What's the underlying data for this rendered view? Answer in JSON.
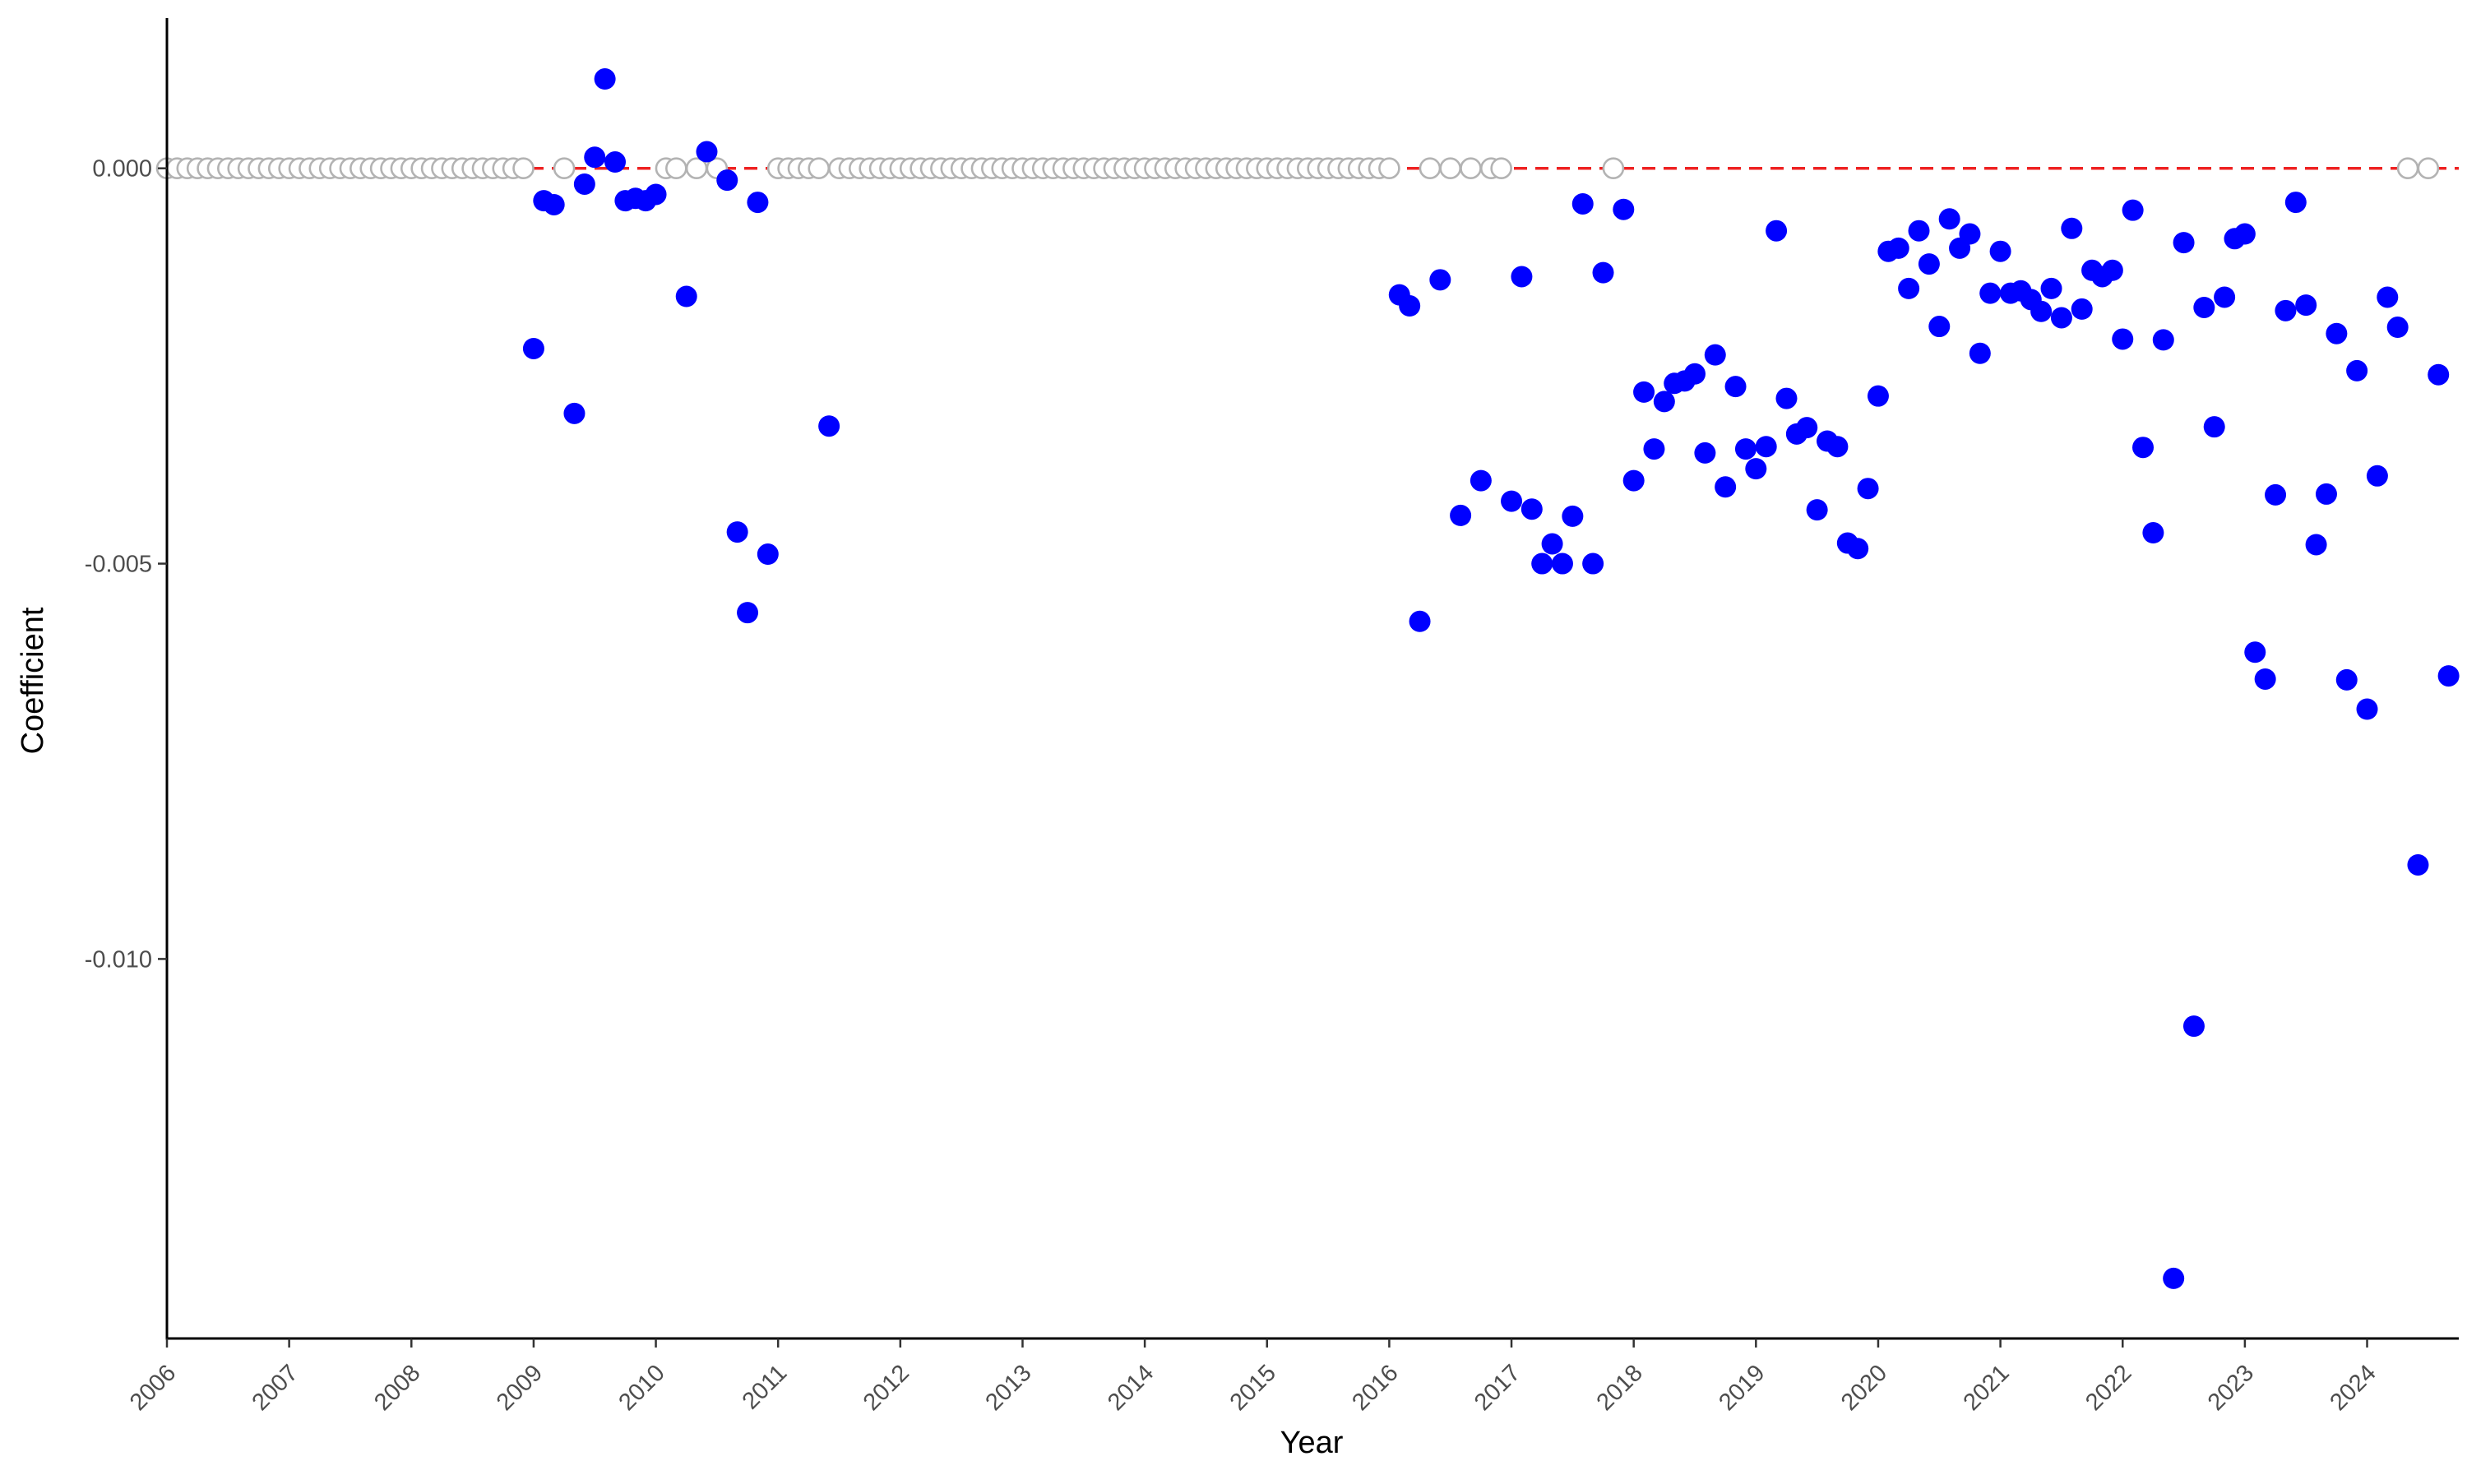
{
  "chart_data": {
    "type": "scatter",
    "xlabel": "Year",
    "ylabel": "Coefficient",
    "x_ticks": [
      "2006",
      "2007",
      "2008",
      "2009",
      "2010",
      "2011",
      "2012",
      "2013",
      "2014",
      "2015",
      "2016",
      "2017",
      "2018",
      "2019",
      "2020",
      "2021",
      "2022",
      "2023",
      "2024"
    ],
    "y_ticks": [
      "0.000",
      "-0.005",
      "-0.010"
    ],
    "xlim": [
      "2006-01",
      "2024-10"
    ],
    "ylim": [
      -0.0148,
      0.0019
    ],
    "grid": false,
    "reference_line": {
      "y": 0,
      "style": "dashed",
      "color": "#ee2222"
    },
    "colors": {
      "significant": "#0000ff",
      "not_significant": "#b3b3b3",
      "reference": "#ee2222"
    },
    "series": [
      {
        "marker": "filled",
        "color": "#0000ff",
        "points": [
          [
            "2009-01",
            -0.00228
          ],
          [
            "2009-02",
            -0.00041
          ],
          [
            "2009-03",
            -0.00046
          ],
          [
            "2009-05",
            -0.0031
          ],
          [
            "2009-06",
            -0.0002
          ],
          [
            "2009-07",
            0.00014
          ],
          [
            "2009-08",
            0.00113
          ],
          [
            "2009-09",
            8e-05
          ],
          [
            "2009-10",
            -0.00041
          ],
          [
            "2009-11",
            -0.00038
          ],
          [
            "2009-12",
            -0.00041
          ],
          [
            "2010-01",
            -0.00033
          ],
          [
            "2010-04",
            -0.00162
          ],
          [
            "2010-06",
            0.00021
          ],
          [
            "2010-08",
            -0.00015
          ],
          [
            "2010-09",
            -0.0046
          ],
          [
            "2010-10",
            -0.00562
          ],
          [
            "2010-11",
            -0.00043
          ],
          [
            "2010-12",
            -0.00488
          ],
          [
            "2011-06",
            -0.00326
          ],
          [
            "2016-02",
            -0.0016
          ],
          [
            "2016-03",
            -0.00174
          ],
          [
            "2016-04",
            -0.00573
          ],
          [
            "2016-06",
            -0.00141
          ],
          [
            "2016-08",
            -0.00439
          ],
          [
            "2016-10",
            -0.00395
          ],
          [
            "2017-01",
            -0.00421
          ],
          [
            "2017-02",
            -0.00137
          ],
          [
            "2017-03",
            -0.00431
          ],
          [
            "2017-04",
            -0.005
          ],
          [
            "2017-05",
            -0.00475
          ],
          [
            "2017-06",
            -0.005
          ],
          [
            "2017-07",
            -0.0044
          ],
          [
            "2017-08",
            -0.00045
          ],
          [
            "2017-09",
            -0.005
          ],
          [
            "2017-10",
            -0.00132
          ],
          [
            "2017-12",
            -0.00052
          ],
          [
            "2018-01",
            -0.00395
          ],
          [
            "2018-02",
            -0.00283
          ],
          [
            "2018-03",
            -0.00355
          ],
          [
            "2018-04",
            -0.00295
          ],
          [
            "2018-05",
            -0.00272
          ],
          [
            "2018-06",
            -0.00269
          ],
          [
            "2018-07",
            -0.0026
          ],
          [
            "2018-08",
            -0.0036
          ],
          [
            "2018-09",
            -0.00236
          ],
          [
            "2018-10",
            -0.00403
          ],
          [
            "2018-11",
            -0.00276
          ],
          [
            "2018-12",
            -0.00355
          ],
          [
            "2019-01",
            -0.0038
          ],
          [
            "2019-02",
            -0.00352
          ],
          [
            "2019-03",
            -0.00079
          ],
          [
            "2019-04",
            -0.00291
          ],
          [
            "2019-05",
            -0.00336
          ],
          [
            "2019-06",
            -0.00328
          ],
          [
            "2019-07",
            -0.00432
          ],
          [
            "2019-08",
            -0.00345
          ],
          [
            "2019-09",
            -0.00352
          ],
          [
            "2019-10",
            -0.00474
          ],
          [
            "2019-11",
            -0.00481
          ],
          [
            "2019-12",
            -0.00405
          ],
          [
            "2020-01",
            -0.00288
          ],
          [
            "2020-02",
            -0.00105
          ],
          [
            "2020-03",
            -0.00101
          ],
          [
            "2020-04",
            -0.00152
          ],
          [
            "2020-05",
            -0.00079
          ],
          [
            "2020-06",
            -0.00121
          ],
          [
            "2020-07",
            -0.002
          ],
          [
            "2020-08",
            -0.00064
          ],
          [
            "2020-09",
            -0.00101
          ],
          [
            "2020-10",
            -0.00083
          ],
          [
            "2020-11",
            -0.00234
          ],
          [
            "2020-12",
            -0.00158
          ],
          [
            "2021-01",
            -0.00105
          ],
          [
            "2021-02",
            -0.00158
          ],
          [
            "2021-03",
            -0.00155
          ],
          [
            "2021-04",
            -0.00166
          ],
          [
            "2021-05",
            -0.00181
          ],
          [
            "2021-06",
            -0.00152
          ],
          [
            "2021-07",
            -0.00189
          ],
          [
            "2021-08",
            -0.00076
          ],
          [
            "2021-09",
            -0.00178
          ],
          [
            "2021-10",
            -0.00129
          ],
          [
            "2021-11",
            -0.00137
          ],
          [
            "2021-12",
            -0.00129
          ],
          [
            "2022-01",
            -0.00216
          ],
          [
            "2022-02",
            -0.00053
          ],
          [
            "2022-03",
            -0.00353
          ],
          [
            "2022-04",
            -0.00461
          ],
          [
            "2022-05",
            -0.00217
          ],
          [
            "2022-06",
            -0.01404
          ],
          [
            "2022-07",
            -0.00094
          ],
          [
            "2022-08",
            -0.01085
          ],
          [
            "2022-09",
            -0.00176
          ],
          [
            "2022-10",
            -0.00327
          ],
          [
            "2022-11",
            -0.00163
          ],
          [
            "2022-12",
            -0.00089
          ],
          [
            "2023-01",
            -0.00083
          ],
          [
            "2023-02",
            -0.00612
          ],
          [
            "2023-03",
            -0.00646
          ],
          [
            "2023-04",
            -0.00413
          ],
          [
            "2023-05",
            -0.0018
          ],
          [
            "2023-06",
            -0.00043
          ],
          [
            "2023-07",
            -0.00173
          ],
          [
            "2023-08",
            -0.00476
          ],
          [
            "2023-09",
            -0.00412
          ],
          [
            "2023-10",
            -0.00209
          ],
          [
            "2023-11",
            -0.00647
          ],
          [
            "2023-12",
            -0.00256
          ],
          [
            "2024-01",
            -0.00684
          ],
          [
            "2024-02",
            -0.00389
          ],
          [
            "2024-03",
            -0.00163
          ],
          [
            "2024-04",
            -0.00201
          ],
          [
            "2024-06",
            -0.00881
          ],
          [
            "2024-08",
            -0.00261
          ],
          [
            "2024-09",
            -0.00642
          ]
        ]
      },
      {
        "marker": "hollow",
        "color": "#b3b3b3",
        "points": [
          [
            "2006-01",
            0
          ],
          [
            "2006-02",
            0
          ],
          [
            "2006-03",
            0
          ],
          [
            "2006-04",
            0
          ],
          [
            "2006-05",
            0
          ],
          [
            "2006-06",
            0
          ],
          [
            "2006-07",
            0
          ],
          [
            "2006-08",
            0
          ],
          [
            "2006-09",
            0
          ],
          [
            "2006-10",
            0
          ],
          [
            "2006-11",
            0
          ],
          [
            "2006-12",
            0
          ],
          [
            "2007-01",
            0
          ],
          [
            "2007-02",
            0
          ],
          [
            "2007-03",
            0
          ],
          [
            "2007-04",
            0
          ],
          [
            "2007-05",
            0
          ],
          [
            "2007-06",
            0
          ],
          [
            "2007-07",
            0
          ],
          [
            "2007-08",
            0
          ],
          [
            "2007-09",
            0
          ],
          [
            "2007-10",
            0
          ],
          [
            "2007-11",
            0
          ],
          [
            "2007-12",
            0
          ],
          [
            "2008-01",
            0
          ],
          [
            "2008-02",
            0
          ],
          [
            "2008-03",
            0
          ],
          [
            "2008-04",
            0
          ],
          [
            "2008-05",
            0
          ],
          [
            "2008-06",
            0
          ],
          [
            "2008-07",
            0
          ],
          [
            "2008-08",
            0
          ],
          [
            "2008-09",
            0
          ],
          [
            "2008-10",
            0
          ],
          [
            "2008-11",
            0
          ],
          [
            "2008-12",
            0
          ],
          [
            "2009-04",
            0
          ],
          [
            "2010-02",
            0
          ],
          [
            "2010-03",
            0
          ],
          [
            "2010-05",
            0
          ],
          [
            "2010-07",
            0
          ],
          [
            "2011-01",
            0
          ],
          [
            "2011-02",
            0
          ],
          [
            "2011-03",
            0
          ],
          [
            "2011-04",
            0
          ],
          [
            "2011-05",
            0
          ],
          [
            "2011-07",
            0
          ],
          [
            "2011-08",
            0
          ],
          [
            "2011-09",
            0
          ],
          [
            "2011-10",
            0
          ],
          [
            "2011-11",
            0
          ],
          [
            "2011-12",
            0
          ],
          [
            "2012-01",
            0
          ],
          [
            "2012-02",
            0
          ],
          [
            "2012-03",
            0
          ],
          [
            "2012-04",
            0
          ],
          [
            "2012-05",
            0
          ],
          [
            "2012-06",
            0
          ],
          [
            "2012-07",
            0
          ],
          [
            "2012-08",
            0
          ],
          [
            "2012-09",
            0
          ],
          [
            "2012-10",
            0
          ],
          [
            "2012-11",
            0
          ],
          [
            "2012-12",
            0
          ],
          [
            "2013-01",
            0
          ],
          [
            "2013-02",
            0
          ],
          [
            "2013-03",
            0
          ],
          [
            "2013-04",
            0
          ],
          [
            "2013-05",
            0
          ],
          [
            "2013-06",
            0
          ],
          [
            "2013-07",
            0
          ],
          [
            "2013-08",
            0
          ],
          [
            "2013-09",
            0
          ],
          [
            "2013-10",
            0
          ],
          [
            "2013-11",
            0
          ],
          [
            "2013-12",
            0
          ],
          [
            "2014-01",
            0
          ],
          [
            "2014-02",
            0
          ],
          [
            "2014-03",
            0
          ],
          [
            "2014-04",
            0
          ],
          [
            "2014-05",
            0
          ],
          [
            "2014-06",
            0
          ],
          [
            "2014-07",
            0
          ],
          [
            "2014-08",
            0
          ],
          [
            "2014-09",
            0
          ],
          [
            "2014-10",
            0
          ],
          [
            "2014-11",
            0
          ],
          [
            "2014-12",
            0
          ],
          [
            "2015-01",
            0
          ],
          [
            "2015-02",
            0
          ],
          [
            "2015-03",
            0
          ],
          [
            "2015-04",
            0
          ],
          [
            "2015-05",
            0
          ],
          [
            "2015-06",
            0
          ],
          [
            "2015-07",
            0
          ],
          [
            "2015-08",
            0
          ],
          [
            "2015-09",
            0
          ],
          [
            "2015-10",
            0
          ],
          [
            "2015-11",
            0
          ],
          [
            "2015-12",
            0
          ],
          [
            "2016-01",
            0
          ],
          [
            "2016-05",
            0
          ],
          [
            "2016-07",
            0
          ],
          [
            "2016-09",
            0
          ],
          [
            "2016-11",
            0
          ],
          [
            "2016-12",
            0
          ],
          [
            "2017-11",
            0
          ],
          [
            "2024-05",
            0
          ],
          [
            "2024-07",
            0
          ]
        ]
      }
    ]
  }
}
